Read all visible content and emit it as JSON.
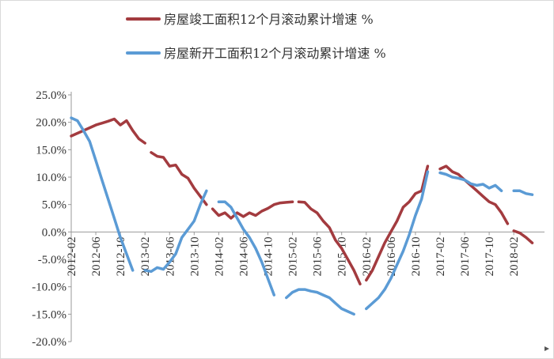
{
  "chart_data": {
    "type": "line",
    "title": "",
    "xlabel": "",
    "ylabel": "",
    "ylim": [
      -20,
      25
    ],
    "yticks": [
      25,
      20,
      15,
      10,
      5,
      0,
      -5,
      -10,
      -15,
      -20
    ],
    "ytick_labels": [
      "25.0%",
      "20.0%",
      "15.0%",
      "10.0%",
      "5.0%",
      "0.0%",
      "-5.0%",
      "-10.0%",
      "-15.0%",
      "-20.0%"
    ],
    "xlim": [
      "2012-02",
      "2018-07"
    ],
    "xtick_labels": [
      "2012-02",
      "2012-06",
      "2012-10",
      "2013-02",
      "2013-06",
      "2013-10",
      "2014-02",
      "2014-06",
      "2014-10",
      "2015-02",
      "2015-06",
      "2015-10",
      "2016-02",
      "2016-06",
      "2016-10",
      "2017-02",
      "2017-06",
      "2017-10",
      "2018-02"
    ],
    "legend_position": "top",
    "grid": false,
    "series": [
      {
        "name": "房屋竣工面积12个月滚动累计增速 %",
        "color": "#a33b3f",
        "segments": [
          [
            [
              "2012-02",
              17.5
            ],
            [
              "2012-04",
              18.5
            ],
            [
              "2012-06",
              19.5
            ],
            [
              "2012-08",
              20.2
            ],
            [
              "2012-09",
              20.6
            ],
            [
              "2012-10",
              19.5
            ],
            [
              "2012-11",
              20.3
            ],
            [
              "2012-12",
              18.5
            ],
            [
              "2013-01",
              17.0
            ],
            [
              "2013-02",
              16.2
            ]
          ],
          [
            [
              "2013-03",
              14.5
            ],
            [
              "2013-04",
              13.8
            ],
            [
              "2013-05",
              13.6
            ],
            [
              "2013-06",
              12.0
            ],
            [
              "2013-07",
              12.2
            ],
            [
              "2013-08",
              10.5
            ],
            [
              "2013-09",
              9.8
            ],
            [
              "2013-10",
              8.0
            ],
            [
              "2013-11",
              6.5
            ],
            [
              "2013-12",
              5.0
            ]
          ],
          [
            [
              "2014-01",
              4.2
            ],
            [
              "2014-02",
              3.0
            ],
            [
              "2014-03",
              3.5
            ],
            [
              "2014-04",
              2.5
            ],
            [
              "2014-05",
              3.5
            ],
            [
              "2014-06",
              2.8
            ],
            [
              "2014-07",
              3.5
            ],
            [
              "2014-08",
              3.0
            ],
            [
              "2014-09",
              3.8
            ],
            [
              "2014-10",
              4.3
            ],
            [
              "2014-11",
              5.0
            ],
            [
              "2014-12",
              5.3
            ],
            [
              "2015-01",
              5.4
            ],
            [
              "2015-02",
              5.5
            ]
          ],
          [
            [
              "2015-03",
              5.5
            ],
            [
              "2015-04",
              5.4
            ],
            [
              "2015-05",
              4.2
            ],
            [
              "2015-06",
              3.5
            ],
            [
              "2015-07",
              2.0
            ],
            [
              "2015-08",
              0.8
            ],
            [
              "2015-09",
              -1.5
            ],
            [
              "2015-10",
              -3.0
            ],
            [
              "2015-11",
              -5.0
            ],
            [
              "2015-12",
              -7.0
            ],
            [
              "2016-01",
              -9.5
            ]
          ],
          [
            [
              "2016-02",
              -8.8
            ],
            [
              "2016-03",
              -7.0
            ],
            [
              "2016-04",
              -4.5
            ],
            [
              "2016-05",
              -2.0
            ],
            [
              "2016-06",
              0.0
            ],
            [
              "2016-07",
              2.0
            ],
            [
              "2016-08",
              4.5
            ],
            [
              "2016-09",
              5.5
            ],
            [
              "2016-10",
              7.0
            ],
            [
              "2016-11",
              7.5
            ],
            [
              "2016-12",
              12.0
            ]
          ],
          [
            [
              "2017-02",
              11.5
            ],
            [
              "2017-03",
              12.0
            ],
            [
              "2017-04",
              11.0
            ],
            [
              "2017-05",
              10.5
            ],
            [
              "2017-06",
              9.5
            ],
            [
              "2017-07",
              8.5
            ],
            [
              "2017-08",
              7.5
            ],
            [
              "2017-09",
              6.5
            ],
            [
              "2017-10",
              5.5
            ],
            [
              "2017-11",
              5.0
            ],
            [
              "2017-12",
              3.5
            ],
            [
              "2018-01",
              1.5
            ]
          ],
          [
            [
              "2018-02",
              0.2
            ],
            [
              "2018-03",
              -0.2
            ],
            [
              "2018-04",
              -1.0
            ],
            [
              "2018-05",
              -2.0
            ]
          ]
        ]
      },
      {
        "name": "房屋新开工面积12个月滚动累计增速 %",
        "color": "#5b9bd5",
        "segments": [
          [
            [
              "2012-02",
              20.8
            ],
            [
              "2012-03",
              20.3
            ],
            [
              "2012-04",
              18.5
            ],
            [
              "2012-05",
              16.5
            ],
            [
              "2012-06",
              13.0
            ],
            [
              "2012-07",
              9.5
            ],
            [
              "2012-08",
              6.0
            ],
            [
              "2012-09",
              2.5
            ],
            [
              "2012-10",
              -1.0
            ],
            [
              "2012-11",
              -4.0
            ],
            [
              "2012-12",
              -7.0
            ]
          ],
          [
            [
              "2013-02",
              -7.0
            ],
            [
              "2013-03",
              -7.2
            ],
            [
              "2013-04",
              -6.5
            ],
            [
              "2013-05",
              -6.8
            ],
            [
              "2013-06",
              -5.5
            ],
            [
              "2013-07",
              -4.0
            ],
            [
              "2013-08",
              -1.0
            ],
            [
              "2013-09",
              0.5
            ],
            [
              "2013-10",
              2.0
            ],
            [
              "2013-11",
              5.0
            ],
            [
              "2013-12",
              7.5
            ]
          ],
          [
            [
              "2014-02",
              5.5
            ],
            [
              "2014-03",
              5.5
            ],
            [
              "2014-04",
              4.5
            ],
            [
              "2014-05",
              2.5
            ],
            [
              "2014-06",
              0.5
            ],
            [
              "2014-07",
              -1.0
            ],
            [
              "2014-08",
              -3.0
            ],
            [
              "2014-09",
              -5.5
            ],
            [
              "2014-10",
              -8.5
            ],
            [
              "2014-11",
              -11.5
            ]
          ],
          [
            [
              "2015-01",
              -12.0
            ],
            [
              "2015-02",
              -11.0
            ],
            [
              "2015-03",
              -10.5
            ],
            [
              "2015-04",
              -10.5
            ],
            [
              "2015-05",
              -10.8
            ],
            [
              "2015-06",
              -11.0
            ],
            [
              "2015-07",
              -11.5
            ],
            [
              "2015-08",
              -12.0
            ],
            [
              "2015-09",
              -13.0
            ],
            [
              "2015-10",
              -14.0
            ],
            [
              "2015-11",
              -14.5
            ],
            [
              "2015-12",
              -15.0
            ]
          ],
          [
            [
              "2016-02",
              -14.0
            ],
            [
              "2016-03",
              -13.0
            ],
            [
              "2016-04",
              -12.0
            ],
            [
              "2016-05",
              -10.5
            ],
            [
              "2016-06",
              -8.5
            ],
            [
              "2016-07",
              -6.0
            ],
            [
              "2016-08",
              -3.5
            ],
            [
              "2016-09",
              -0.5
            ],
            [
              "2016-10",
              3.0
            ],
            [
              "2016-11",
              6.0
            ],
            [
              "2016-12",
              11.0
            ]
          ],
          [
            [
              "2017-02",
              10.8
            ],
            [
              "2017-03",
              10.5
            ],
            [
              "2017-04",
              10.0
            ],
            [
              "2017-05",
              9.8
            ],
            [
              "2017-06",
              9.5
            ],
            [
              "2017-07",
              8.8
            ],
            [
              "2017-08",
              8.5
            ],
            [
              "2017-09",
              8.7
            ],
            [
              "2017-10",
              8.0
            ],
            [
              "2017-11",
              8.5
            ],
            [
              "2017-12",
              7.5
            ]
          ],
          [
            [
              "2018-02",
              7.5
            ],
            [
              "2018-03",
              7.5
            ],
            [
              "2018-04",
              7.0
            ],
            [
              "2018-05",
              6.8
            ]
          ]
        ]
      }
    ]
  }
}
